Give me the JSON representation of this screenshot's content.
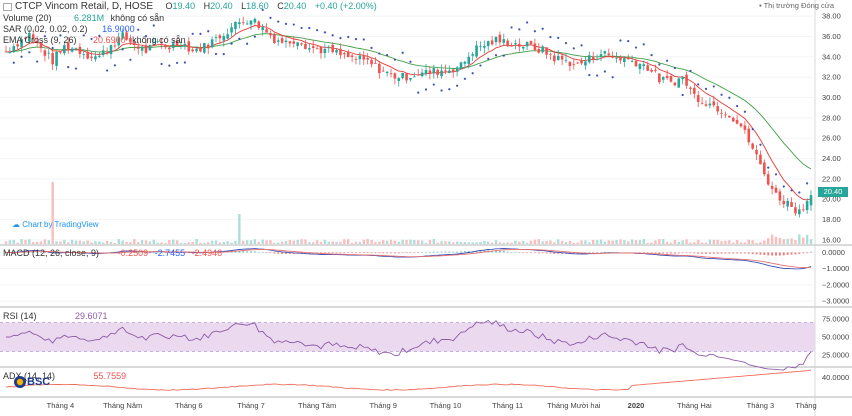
{
  "header": {
    "symbol_title": "CTCP Vincom Retail, D, HOSE",
    "open_label": "O",
    "open": "19.40",
    "high_label": "H",
    "high": "20.40",
    "low_label": "L",
    "low": "18.60",
    "close_label": "C",
    "close": "20.40",
    "change": "+0.40 (+2.00%)",
    "market_status": "Thị trường Đóng cửa"
  },
  "indicators": {
    "volume": {
      "label": "Volume (20)",
      "value": "6.281M",
      "extra": "không có sẵn"
    },
    "sar": {
      "label": "SAR (0.02, 0.02, 0.2)",
      "value": "16.9000"
    },
    "ema": {
      "label": "EMA Cross (9, 26)",
      "v1": "20.6900",
      "v2": "không có sẵn"
    },
    "macd": {
      "label": "MACD (12, 26, close, 9)",
      "v1": "-0.2509",
      "v2": "-2.7455",
      "v3": "-2.4946"
    },
    "rsi": {
      "label": "RSI (14)",
      "value": "29.6071"
    },
    "adx": {
      "label": "ADX (14, 14)",
      "value": "55.7559"
    }
  },
  "credit": "Chart by TradingView",
  "brand": "BSC",
  "price_tag": "20.40",
  "colors": {
    "up": "#26a69a",
    "down": "#ef5350",
    "sar": "#3f51b5",
    "ema_fast": "#e53935",
    "ema_slow": "#43a047",
    "macd": "#7b61c9",
    "rsi": "#8e5ba8",
    "rsi_band": "#ead9ef",
    "adx": "#ef6c5a"
  },
  "chart_data": [
    {
      "type": "candlestick",
      "name": "price",
      "x": [
        "Tháng 4",
        "Tháng Năm",
        "Tháng 6",
        "Tháng 7",
        "Tháng Tám",
        "Tháng 9",
        "Tháng 10",
        "Tháng 11",
        "Tháng Mười hai",
        "2020",
        "Tháng Hai",
        "Tháng 3",
        "Tháng"
      ],
      "y_ticks": [
        16.0,
        18.0,
        20.0,
        22.0,
        24.0,
        26.0,
        28.0,
        30.0,
        32.0,
        34.0,
        36.0,
        38.0
      ],
      "ylim": [
        15.6,
        38.8
      ],
      "close_path": [
        [
          0,
          34.5
        ],
        [
          3,
          35.4
        ],
        [
          6,
          36.2
        ],
        [
          9,
          34.8
        ],
        [
          12,
          33.6
        ],
        [
          15,
          35.0
        ],
        [
          18,
          34.8
        ],
        [
          21,
          34.2
        ],
        [
          24,
          34.0
        ],
        [
          27,
          35.2
        ],
        [
          30,
          36.0
        ],
        [
          33,
          35.2
        ],
        [
          36,
          34.6
        ],
        [
          39,
          35.3
        ],
        [
          42,
          35.0
        ],
        [
          45,
          35.5
        ],
        [
          48,
          34.6
        ],
        [
          51,
          35.0
        ],
        [
          54,
          35.8
        ],
        [
          57,
          36.6
        ],
        [
          60,
          37.4
        ],
        [
          63,
          37.8
        ],
        [
          66,
          36.8
        ],
        [
          69,
          35.8
        ],
        [
          72,
          35.4
        ],
        [
          75,
          35.8
        ],
        [
          78,
          34.9
        ],
        [
          81,
          34.7
        ],
        [
          84,
          34.5
        ],
        [
          87,
          34.0
        ],
        [
          90,
          33.8
        ],
        [
          93,
          33.5
        ],
        [
          96,
          32.8
        ],
        [
          99,
          32.2
        ],
        [
          102,
          32.0
        ],
        [
          105,
          32.3
        ],
        [
          108,
          32.4
        ],
        [
          111,
          32.6
        ],
        [
          114,
          32.8
        ],
        [
          117,
          33.1
        ],
        [
          120,
          34.6
        ],
        [
          123,
          35.2
        ],
        [
          126,
          35.6
        ],
        [
          129,
          35.4
        ],
        [
          132,
          35.2
        ],
        [
          135,
          35.0
        ],
        [
          138,
          34.6
        ],
        [
          141,
          33.9
        ],
        [
          144,
          33.6
        ],
        [
          147,
          33.2
        ],
        [
          150,
          33.8
        ],
        [
          153,
          34.4
        ],
        [
          156,
          34.0
        ],
        [
          159,
          33.8
        ],
        [
          162,
          33.5
        ],
        [
          165,
          33.0
        ],
        [
          168,
          31.8
        ],
        [
          171,
          31.5
        ],
        [
          174,
          31.9
        ],
        [
          177,
          30.2
        ],
        [
          180,
          29.6
        ],
        [
          183,
          29.0
        ],
        [
          186,
          28.4
        ],
        [
          189,
          27.2
        ],
        [
          192,
          25.0
        ],
        [
          195,
          22.5
        ],
        [
          198,
          20.4
        ],
        [
          201,
          19.6
        ],
        [
          204,
          18.8
        ],
        [
          207,
          20.4
        ]
      ],
      "current_price": 20.4
    },
    {
      "type": "line",
      "name": "MACD",
      "y_ticks": [
        0.0,
        -1.0,
        -2.0,
        -3.0
      ],
      "ylim": [
        -3.3,
        0.4
      ]
    },
    {
      "type": "line",
      "name": "RSI",
      "y_ticks": [
        75.0,
        50.0,
        25.0
      ],
      "ylim": [
        10,
        90
      ],
      "band": [
        30,
        70
      ],
      "current": 29.6071
    },
    {
      "type": "line",
      "name": "ADX",
      "y_ticks": [
        40.0
      ],
      "ylim": [
        0,
        60
      ],
      "current": 55.7559
    }
  ]
}
